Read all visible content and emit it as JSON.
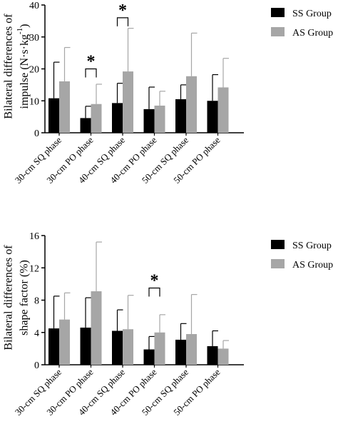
{
  "chart_data": [
    {
      "type": "bar",
      "ylabel_line1": "Bilateral differences of",
      "ylabel_line2_prefix": "impulse (N·s·kg",
      "ylabel_line2_sup": "-1",
      "ylabel_line2_suffix": ")",
      "ylim": [
        0,
        40
      ],
      "yticks": [
        "0",
        "10",
        "20",
        "30",
        "40"
      ],
      "categories": [
        "30-cm SQ phase",
        "30-cm PO phase",
        "40-cm SQ phase",
        "40-cm PO phase",
        "50-cm SQ phase",
        "50-cm PO phase"
      ],
      "series": [
        {
          "name": "SS Group",
          "color": "#000000",
          "values": [
            10.8,
            4.6,
            9.3,
            7.4,
            10.5,
            10.0
          ],
          "errors": [
            11.3,
            3.7,
            6.2,
            6.9,
            4.5,
            8.2
          ]
        },
        {
          "name": "AS Group",
          "color": "#a6a6a6",
          "values": [
            16.1,
            9.0,
            19.2,
            8.5,
            17.7,
            14.2
          ],
          "errors": [
            10.6,
            6.2,
            13.5,
            4.5,
            13.5,
            9.1
          ]
        }
      ],
      "significance": [
        {
          "category_index": 1,
          "bracket_y": 20.0,
          "label": "*"
        },
        {
          "category_index": 2,
          "bracket_y": 36.0,
          "label": "*"
        }
      ]
    },
    {
      "type": "bar",
      "ylabel_line1": "Bilateral differences of",
      "ylabel_line2": "shape factor (%)",
      "ylim": [
        0,
        16
      ],
      "yticks": [
        "0",
        "4",
        "8",
        "12",
        "16"
      ],
      "categories": [
        "30-cm SQ phase",
        "30-cm PO phase",
        "40-cm SQ phase",
        "40-cm PO phase",
        "50-cm SQ phase",
        "50-cm PO phase"
      ],
      "series": [
        {
          "name": "SS Group",
          "color": "#000000",
          "values": [
            4.5,
            4.6,
            4.2,
            1.9,
            3.1,
            2.3
          ],
          "errors": [
            4.0,
            3.7,
            2.6,
            1.6,
            2.0,
            1.9
          ]
        },
        {
          "name": "AS Group",
          "color": "#a6a6a6",
          "values": [
            5.6,
            9.1,
            4.4,
            4.0,
            3.8,
            2.0
          ],
          "errors": [
            3.3,
            6.1,
            4.2,
            2.2,
            4.9,
            1.0
          ]
        }
      ],
      "significance": [
        {
          "category_index": 3,
          "bracket_y": 9.5,
          "label": "*"
        }
      ]
    }
  ]
}
